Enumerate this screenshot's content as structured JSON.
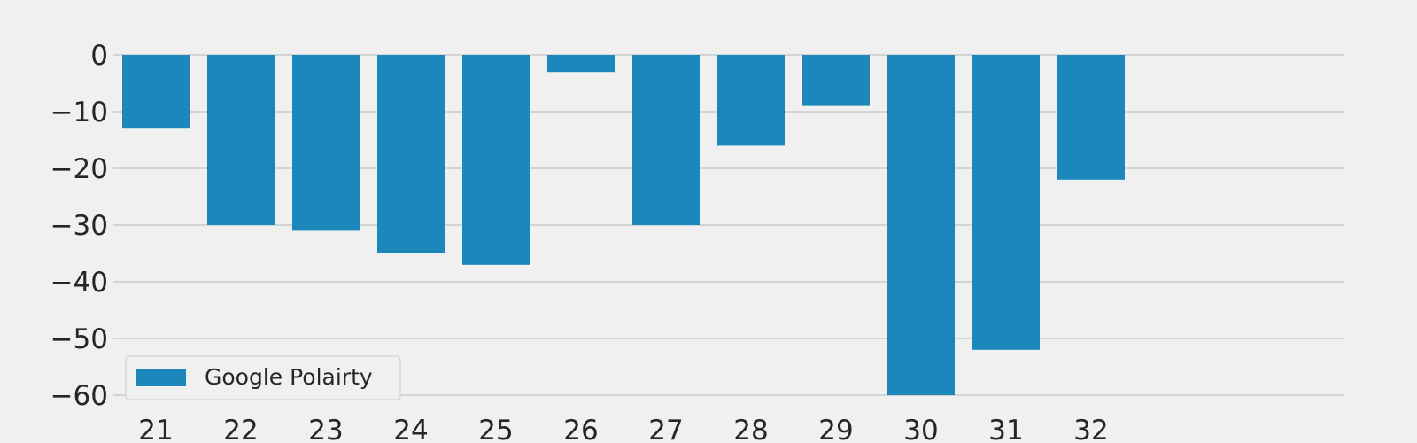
{
  "chart_data": {
    "type": "bar",
    "categories": [
      "21",
      "22",
      "23",
      "24",
      "25",
      "26",
      "27",
      "28",
      "29",
      "30",
      "31",
      "32"
    ],
    "series": [
      {
        "name": "Google Polairty",
        "color": "#1b87bb",
        "values": [
          -13,
          -30,
          -31,
          -35,
          -37,
          -3,
          -30,
          -16,
          -9,
          -60,
          -52,
          -22
        ]
      }
    ],
    "ylim": [
      -60,
      0
    ],
    "yticks": [
      0,
      -10,
      -20,
      -30,
      -40,
      -50,
      -60
    ],
    "ytick_labels": [
      "0",
      "−10",
      "−20",
      "−30",
      "−40",
      "−50",
      "−60"
    ],
    "title": "",
    "xlabel": "",
    "ylabel": "",
    "grid": "horizontal",
    "legend_position": "lower-left",
    "background": "#f0f0f0",
    "grid_color": "#cbcbcb"
  }
}
